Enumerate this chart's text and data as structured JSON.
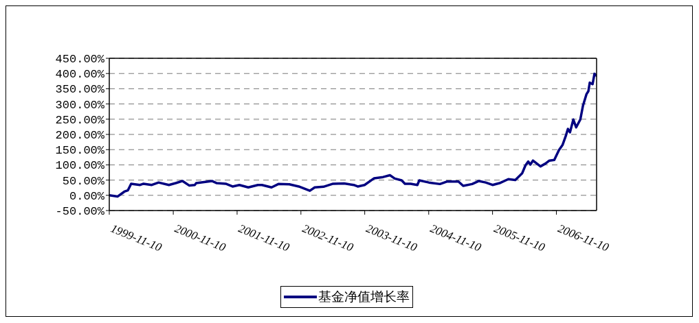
{
  "chart_data": {
    "type": "line",
    "x": [
      "1999-11-10",
      "1999-12-27",
      "2000-02-04",
      "2000-02-24",
      "2000-03-14",
      "2000-05-04",
      "2000-05-24",
      "2000-07-10",
      "2000-08-18",
      "2000-10-16",
      "2000-11-24",
      "2001-01-02",
      "2001-02-10",
      "2001-03-13",
      "2001-03-21",
      "2001-06-19",
      "2001-07-17",
      "2001-09-06",
      "2001-10-15",
      "2001-11-23",
      "2002-01-13",
      "2002-03-09",
      "2002-04-01",
      "2002-05-26",
      "2002-07-04",
      "2002-09-05",
      "2002-10-29",
      "2002-12-31",
      "2003-01-28",
      "2003-03-19",
      "2003-05-13",
      "2003-07-15",
      "2003-09-08",
      "2003-10-01",
      "2003-11-09",
      "2004-01-03",
      "2004-02-23",
      "2004-04-02",
      "2004-04-30",
      "2004-06-08",
      "2004-06-27",
      "2004-07-29",
      "2004-09-06",
      "2004-09-17",
      "2004-11-11",
      "2005-01-13",
      "2005-02-21",
      "2005-04-29",
      "2005-05-26",
      "2005-07-16",
      "2005-08-24",
      "2005-10-02",
      "2005-11-10",
      "2005-12-20",
      "2006-02-08",
      "2006-03-20",
      "2006-04-28",
      "2006-05-17",
      "2006-06-02",
      "2006-06-14",
      "2006-06-29",
      "2006-08-11",
      "2006-09-08",
      "2006-10-01",
      "2006-10-29",
      "2006-11-25",
      "2006-12-15",
      "2007-01-04",
      "2007-01-15",
      "2007-01-27",
      "2007-02-15",
      "2007-03-03",
      "2007-03-27",
      "2007-04-11",
      "2007-05-01",
      "2007-05-12",
      "2007-05-20",
      "2007-06-05",
      "2007-06-16",
      "2007-06-28"
    ],
    "series": [
      {
        "name": "基金净值增长率",
        "color": "#000080",
        "values": [
          0,
          -4,
          12,
          16,
          38,
          34,
          38,
          34,
          42,
          34,
          40,
          47,
          32,
          34,
          40,
          47,
          40,
          38,
          29,
          34,
          26,
          34,
          34,
          26,
          37,
          36,
          29,
          15,
          26,
          28,
          38,
          39,
          34,
          29,
          34,
          56,
          60,
          66,
          55,
          49,
          38,
          38,
          34,
          49,
          42,
          37,
          45,
          45,
          31,
          37,
          47,
          42,
          34,
          40,
          53,
          50,
          72,
          98,
          111,
          101,
          114,
          95,
          104,
          114,
          116,
          149,
          165,
          197,
          218,
          207,
          249,
          223,
          249,
          294,
          332,
          342,
          370,
          365,
          399,
          393
        ]
      }
    ],
    "xlim": [
      "1999-11-10",
      "2007-06-28"
    ],
    "xticks": [
      "1999-11-10",
      "2000-11-10",
      "2001-11-10",
      "2002-11-10",
      "2003-11-10",
      "2004-11-10",
      "2005-11-10",
      "2006-11-10"
    ],
    "ylim": [
      -50,
      450
    ],
    "yticks": [
      {
        "value": -50,
        "label": "-50.00%"
      },
      {
        "value": 0,
        "label": "0.00%"
      },
      {
        "value": 50,
        "label": "50.00%"
      },
      {
        "value": 100,
        "label": "100.00%"
      },
      {
        "value": 150,
        "label": "150.00%"
      },
      {
        "value": 200,
        "label": "200.00%"
      },
      {
        "value": 250,
        "label": "250.00%"
      },
      {
        "value": 300,
        "label": "300.00%"
      },
      {
        "value": 350,
        "label": "350.00%"
      },
      {
        "value": 400,
        "label": "400.00%"
      },
      {
        "value": 450,
        "label": "450.00%"
      }
    ],
    "grid": "y",
    "legend": "bottom",
    "marker": "none",
    "line_style": "solid"
  }
}
